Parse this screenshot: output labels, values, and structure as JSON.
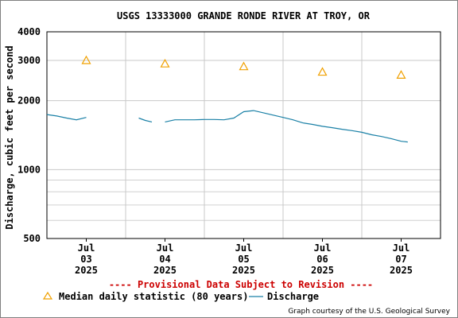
{
  "chart_data": {
    "type": "line",
    "title": "USGS 13333000 GRANDE RONDE RIVER AT TROY, OR",
    "ylabel": "Discharge, cubic feet per second",
    "xlabel": "",
    "yscale": "log",
    "ylim": [
      500,
      4000
    ],
    "xlim": [
      "2025-07-02 12:00",
      "2025-07-07 12:00"
    ],
    "grid": true,
    "y_ticks": [
      {
        "value": 4000,
        "label": "4000"
      },
      {
        "value": 3000,
        "label": "3000"
      },
      {
        "value": 2000,
        "label": "2000"
      },
      {
        "value": 1000,
        "label": "1000"
      },
      {
        "value": 500,
        "label": "500"
      }
    ],
    "y_minor_ticks": [
      900,
      800,
      700,
      600
    ],
    "x_ticks": [
      {
        "time": "2025-07-03 00:00",
        "month": "Jul",
        "day": "03",
        "year": "2025"
      },
      {
        "time": "2025-07-04 00:00",
        "month": "Jul",
        "day": "04",
        "year": "2025"
      },
      {
        "time": "2025-07-05 00:00",
        "month": "Jul",
        "day": "05",
        "year": "2025"
      },
      {
        "time": "2025-07-06 00:00",
        "month": "Jul",
        "day": "06",
        "year": "2025"
      },
      {
        "time": "2025-07-07 00:00",
        "month": "Jul",
        "day": "07",
        "year": "2025"
      }
    ],
    "x_major_gridlines": [
      "2025-07-03 12:00",
      "2025-07-04 12:00",
      "2025-07-05 12:00",
      "2025-07-06 12:00"
    ],
    "series": [
      {
        "name": "Discharge",
        "color": "#1a80a6",
        "segments": [
          {
            "x": [
              "2025-07-02 12:00",
              "2025-07-02 15:00",
              "2025-07-02 18:00",
              "2025-07-02 21:00",
              "2025-07-03 00:00"
            ],
            "y": [
              1740,
              1715,
              1680,
              1650,
              1690
            ]
          },
          {
            "x": [
              "2025-07-03 16:00",
              "2025-07-03 18:00",
              "2025-07-03 20:00"
            ],
            "y": [
              1680,
              1640,
              1615
            ]
          },
          {
            "x": [
              "2025-07-04 00:00",
              "2025-07-04 03:00",
              "2025-07-04 06:00",
              "2025-07-04 09:00",
              "2025-07-04 12:00",
              "2025-07-04 15:00",
              "2025-07-04 18:00",
              "2025-07-04 21:00",
              "2025-07-05 00:00",
              "2025-07-05 03:00",
              "2025-07-05 06:00",
              "2025-07-05 09:00",
              "2025-07-05 12:00",
              "2025-07-05 15:00",
              "2025-07-05 18:00",
              "2025-07-05 21:00",
              "2025-07-06 00:00",
              "2025-07-06 03:00",
              "2025-07-06 06:00",
              "2025-07-06 09:00",
              "2025-07-06 12:00",
              "2025-07-06 15:00",
              "2025-07-06 18:00",
              "2025-07-06 21:00",
              "2025-07-07 00:00",
              "2025-07-07 02:00"
            ],
            "y": [
              1615,
              1650,
              1650,
              1650,
              1655,
              1655,
              1650,
              1680,
              1790,
              1810,
              1770,
              1730,
              1690,
              1650,
              1600,
              1575,
              1545,
              1525,
              1500,
              1480,
              1455,
              1420,
              1395,
              1365,
              1330,
              1320
            ]
          }
        ]
      },
      {
        "name": "Median daily statistic (80 years)",
        "type": "scatter",
        "marker": "triangle",
        "color": "#f0a000",
        "x": [
          "2025-07-03 00:00",
          "2025-07-04 00:00",
          "2025-07-05 00:00",
          "2025-07-06 00:00",
          "2025-07-07 00:00"
        ],
        "y": [
          3000,
          2900,
          2820,
          2670,
          2590
        ]
      }
    ],
    "legend": {
      "placement": "bottom",
      "items": [
        {
          "label": "Median daily statistic (80 years)",
          "marker": "triangle",
          "color": "#f0a000"
        },
        {
          "label": "Discharge",
          "marker": "line",
          "color": "#1a80a6"
        }
      ]
    },
    "annotations": {
      "provisional": "---- Provisional Data Subject to Revision ----",
      "credit": "Graph courtesy of the U.S. Geological Survey"
    }
  }
}
